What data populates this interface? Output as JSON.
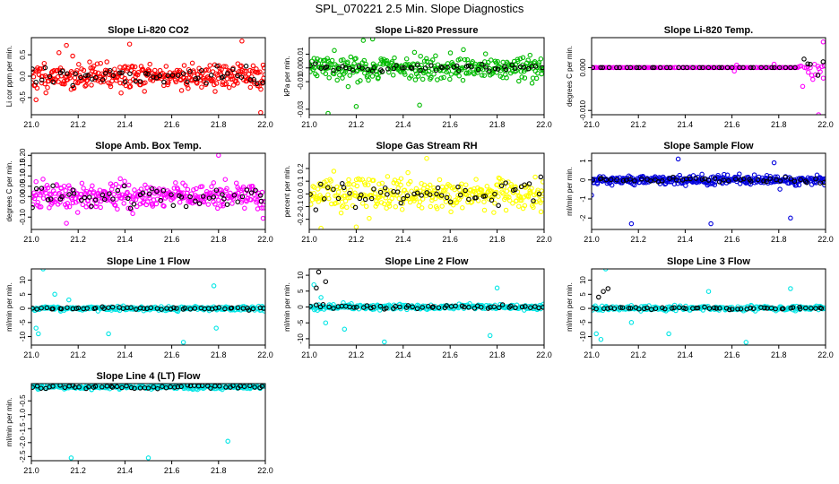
{
  "figure_title": "SPL_070221  2.5 Min. Slope Diagnostics",
  "chart_data": [
    {
      "type": "scatter",
      "title": "Slope Li-820 CO2",
      "ylabel": "Li cor ppm per min.",
      "xlim": [
        21.0,
        22.0
      ],
      "ylim": [
        -0.9,
        0.9
      ],
      "xticks": [
        "21.0",
        "21.2",
        "21.4",
        "21.6",
        "21.8",
        "22.0"
      ],
      "yticks": [
        "-0.5",
        "0.0",
        "0.5"
      ],
      "series": [
        {
          "color": "#ff0000",
          "spread": 0.28,
          "count": 340,
          "seed": 11,
          "outliers": [
            [
              21.15,
              0.72
            ],
            [
              21.42,
              0.75
            ],
            [
              21.9,
              0.82
            ],
            [
              21.98,
              -0.85
            ],
            [
              21.02,
              -0.55
            ]
          ]
        },
        {
          "color": "#000000",
          "spread": 0.22,
          "count": 55,
          "seed": 12,
          "outliers": []
        }
      ]
    },
    {
      "type": "scatter",
      "title": "Slope Li-820 Pressure",
      "ylabel": "kPa per min.",
      "xlim": [
        21.0,
        22.0
      ],
      "ylim": [
        -0.034,
        0.022
      ],
      "xticks": [
        "21.0",
        "21.2",
        "21.4",
        "21.6",
        "21.8",
        "22.0"
      ],
      "yticks": [
        "-0.03",
        "-0.01",
        "0.00",
        "0.01"
      ],
      "series": [
        {
          "color": "#00bb00",
          "spread": 0.008,
          "count": 320,
          "seed": 21,
          "outliers": [
            [
              21.08,
              -0.033
            ],
            [
              21.2,
              -0.028
            ],
            [
              21.47,
              -0.027
            ],
            [
              21.23,
              0.02
            ],
            [
              21.27,
              0.021
            ]
          ]
        },
        {
          "color": "#000000",
          "spread": 0.0025,
          "count": 55,
          "seed": 22,
          "outliers": []
        }
      ]
    },
    {
      "type": "scatter",
      "title": "Slope Li-820 Temp.",
      "ylabel": "degrees C per min.",
      "xlim": [
        21.0,
        22.0
      ],
      "ylim": [
        -0.011,
        0.007
      ],
      "xticks": [
        "21.0",
        "21.2",
        "21.4",
        "21.6",
        "21.8",
        "22.0"
      ],
      "yticks": [
        "-0.010",
        "0.000"
      ],
      "flat_until": 21.88,
      "series": [
        {
          "color": "#ff00ff",
          "spread": 0.003,
          "count": 160,
          "seed": 31,
          "outliers": [
            [
              21.97,
              -0.011
            ],
            [
              21.99,
              0.006
            ],
            [
              21.61,
              -0.0008
            ],
            [
              21.78,
              0.0008
            ],
            [
              21.62,
              0.0006
            ]
          ]
        },
        {
          "color": "#000000",
          "spread": 0.002,
          "count": 45,
          "seed": 32,
          "outliers": []
        }
      ]
    },
    {
      "type": "scatter",
      "title": "Slope Amb. Box Temp.",
      "ylabel": "degrees C per min.",
      "xlim": [
        21.0,
        22.0
      ],
      "ylim": [
        -0.16,
        0.21
      ],
      "xticks": [
        "21.0",
        "21.2",
        "21.4",
        "21.6",
        "21.8",
        "22.0"
      ],
      "yticks": [
        "-0.10",
        "0.00",
        "0.05",
        "0.10",
        "0.15",
        "0.20"
      ],
      "series": [
        {
          "color": "#ff00ff",
          "spread": 0.06,
          "count": 330,
          "seed": 41,
          "outliers": [
            [
              21.8,
              0.2
            ],
            [
              21.15,
              -0.13
            ]
          ]
        },
        {
          "color": "#000000",
          "spread": 0.05,
          "count": 55,
          "seed": 42,
          "outliers": []
        }
      ]
    },
    {
      "type": "scatter",
      "title": "Slope Gas Stream RH",
      "ylabel": "percent per min.",
      "xlim": [
        21.0,
        22.0
      ],
      "ylim": [
        -0.28,
        0.32
      ],
      "xticks": [
        "21.0",
        "21.2",
        "21.4",
        "21.6",
        "21.8",
        "22.0"
      ],
      "yticks": [
        "-0.2",
        "-0.1",
        "0.0",
        "0.1",
        "0.2"
      ],
      "series": [
        {
          "color": "#ffff00",
          "spread": 0.11,
          "count": 330,
          "seed": 51,
          "outliers": [
            [
              21.05,
              -0.27
            ],
            [
              21.2,
              -0.26
            ],
            [
              21.5,
              0.28
            ]
          ]
        },
        {
          "color": "#000000",
          "spread": 0.09,
          "count": 55,
          "seed": 52,
          "outliers": []
        }
      ]
    },
    {
      "type": "scatter",
      "title": "Slope Sample Flow",
      "ylabel": "ml/min per min.",
      "xlim": [
        21.0,
        22.0
      ],
      "ylim": [
        -2.6,
        1.4
      ],
      "xticks": [
        "21.0",
        "21.2",
        "21.4",
        "21.6",
        "21.8",
        "22.0"
      ],
      "yticks": [
        "-2",
        "-1",
        "0",
        "1"
      ],
      "series": [
        {
          "color": "#0000dd",
          "spread": 0.22,
          "count": 330,
          "seed": 61,
          "outliers": [
            [
              21.17,
              -2.3
            ],
            [
              21.51,
              -2.3
            ],
            [
              21.85,
              -2.0
            ],
            [
              21.37,
              1.1
            ],
            [
              21.78,
              0.9
            ],
            [
              21.0,
              -0.8
            ]
          ]
        },
        {
          "color": "#000000",
          "spread": 0.12,
          "count": 50,
          "seed": 62,
          "outliers": []
        }
      ]
    },
    {
      "type": "scatter",
      "title": "Slope Line 1 Flow",
      "ylabel": "ml/min per min.",
      "xlim": [
        21.0,
        22.0
      ],
      "ylim": [
        -13,
        14
      ],
      "xticks": [
        "21.0",
        "21.2",
        "21.4",
        "21.6",
        "21.8",
        "22.0"
      ],
      "yticks": [
        "-10",
        "-5",
        "0",
        "5",
        "10"
      ],
      "series": [
        {
          "color": "#00e5e5",
          "spread": 0.7,
          "count": 240,
          "seed": 71,
          "outliers": [
            [
              21.05,
              14
            ],
            [
              21.03,
              -9
            ],
            [
              21.02,
              -7
            ],
            [
              21.33,
              -9
            ],
            [
              21.65,
              -12
            ],
            [
              21.78,
              8
            ],
            [
              21.79,
              -7
            ],
            [
              21.16,
              3
            ],
            [
              21.1,
              5
            ]
          ]
        },
        {
          "color": "#000000",
          "spread": 0.35,
          "count": 55,
          "seed": 72,
          "outliers": []
        }
      ]
    },
    {
      "type": "scatter",
      "title": "Slope Line 2 Flow",
      "ylabel": "ml/min per min.",
      "xlim": [
        21.0,
        22.0
      ],
      "ylim": [
        -12,
        12
      ],
      "xticks": [
        "21.0",
        "21.2",
        "21.4",
        "21.6",
        "21.8",
        "22.0"
      ],
      "yticks": [
        "-10",
        "-5",
        "0",
        "5",
        "10"
      ],
      "series": [
        {
          "color": "#00e5e5",
          "spread": 0.8,
          "count": 240,
          "seed": 81,
          "outliers": [
            [
              21.02,
              7
            ],
            [
              21.07,
              -5
            ],
            [
              21.15,
              -7
            ],
            [
              21.32,
              -11
            ],
            [
              21.77,
              -9
            ],
            [
              21.8,
              6
            ],
            [
              21.05,
              3
            ]
          ]
        },
        {
          "color": "#000000",
          "spread": 0.5,
          "count": 55,
          "seed": 82,
          "outliers": [
            [
              21.04,
              11
            ],
            [
              21.03,
              6
            ],
            [
              21.07,
              8
            ]
          ]
        }
      ]
    },
    {
      "type": "scatter",
      "title": "Slope Line 3 Flow",
      "ylabel": "ml/min per min.",
      "xlim": [
        21.0,
        22.0
      ],
      "ylim": [
        -13,
        14
      ],
      "xticks": [
        "21.0",
        "21.2",
        "21.4",
        "21.6",
        "21.8",
        "22.0"
      ],
      "yticks": [
        "-10",
        "-5",
        "0",
        "5",
        "10"
      ],
      "series": [
        {
          "color": "#00e5e5",
          "spread": 0.8,
          "count": 240,
          "seed": 91,
          "outliers": [
            [
              21.06,
              14
            ],
            [
              21.04,
              -11
            ],
            [
              21.02,
              -9
            ],
            [
              21.33,
              -9
            ],
            [
              21.66,
              -12
            ],
            [
              21.5,
              6
            ],
            [
              21.85,
              7
            ],
            [
              21.17,
              -5
            ]
          ]
        },
        {
          "color": "#000000",
          "spread": 0.4,
          "count": 55,
          "seed": 92,
          "outliers": [
            [
              21.05,
              6
            ],
            [
              21.07,
              7
            ],
            [
              21.03,
              4
            ]
          ]
        }
      ]
    },
    {
      "type": "scatter",
      "title": "Slope Line 4 (LT) Flow",
      "ylabel": "ml/min per min.",
      "xlim": [
        21.0,
        22.0
      ],
      "ylim": [
        -2.65,
        0.12
      ],
      "xticks": [
        "21.0",
        "21.2",
        "21.4",
        "21.6",
        "21.8",
        "22.0"
      ],
      "yticks": [
        "-2.5",
        "-2.0",
        "-1.5",
        "-1.0",
        "-0.5"
      ],
      "series": [
        {
          "color": "#00e5e5",
          "spread": 0.07,
          "count": 260,
          "seed": 101,
          "outliers": [
            [
              21.17,
              -2.55
            ],
            [
              21.5,
              -2.55
            ],
            [
              21.84,
              -1.95
            ]
          ]
        },
        {
          "color": "#000000",
          "spread": 0.05,
          "count": 55,
          "seed": 102,
          "outliers": []
        }
      ]
    }
  ]
}
